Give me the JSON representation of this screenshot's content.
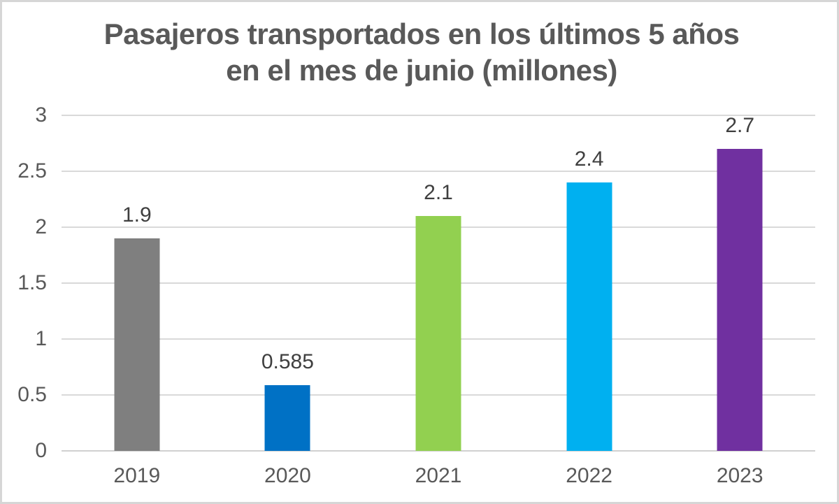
{
  "chart_data": {
    "type": "bar",
    "title": "Pasajeros transportados en los últimos 5 años en el mes de junio (millones)",
    "categories": [
      "2019",
      "2020",
      "2021",
      "2022",
      "2023"
    ],
    "values": [
      1.9,
      0.585,
      2.1,
      2.4,
      2.7
    ],
    "value_labels": [
      "1.9",
      "0.585",
      "2.1",
      "2.4",
      "2.7"
    ],
    "bar_colors": [
      "#7f7f7f",
      "#0071c5",
      "#92d050",
      "#00b0f0",
      "#7030a0"
    ],
    "xlabel": "",
    "ylabel": "",
    "ylim": [
      0,
      3
    ],
    "ytick_step": 0.5,
    "ytick_labels": [
      "0",
      "0.5",
      "1",
      "1.5",
      "2",
      "2.5",
      "3"
    ],
    "grid": true,
    "legend": false
  },
  "colors": {
    "title_text": "#595959",
    "axis_text": "#595959",
    "value_label_text": "#3f3f3f",
    "gridline": "#d9d9d9",
    "axis_line": "#d0d0d0",
    "frame_border": "#d6d6d6",
    "background": "#ffffff"
  }
}
